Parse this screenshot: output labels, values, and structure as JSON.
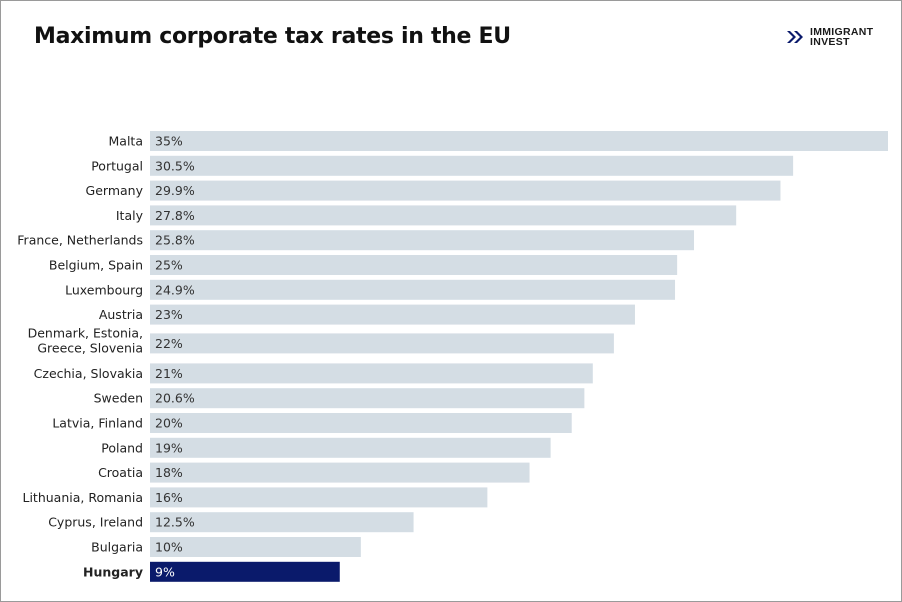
{
  "chart_data": {
    "type": "bar",
    "orientation": "horizontal",
    "title": "Maximum corporate tax rates in the EU",
    "categories": [
      "Malta",
      "Portugal",
      "Germany",
      "Italy",
      "France, Netherlands",
      "Belgium, Spain",
      "Luxembourg",
      "Austria",
      "Denmark, Estonia, Greece, Slovenia",
      "Czechia, Slovakia",
      "Sweden",
      "Latvia, Finland",
      "Poland",
      "Croatia",
      "Lithuania, Romania",
      "Cyprus, Ireland",
      "Bulgaria",
      "Hungary"
    ],
    "values": [
      35,
      30.5,
      29.9,
      27.8,
      25.8,
      25,
      24.9,
      23,
      22,
      21,
      20.6,
      20,
      19,
      18,
      16,
      12.5,
      10,
      9
    ],
    "labels": [
      "35%",
      "30.5%",
      "29.9%",
      "27.8%",
      "25.8%",
      "25%",
      "24.9%",
      "23%",
      "22%",
      "21%",
      "20.6%",
      "20%",
      "19%",
      "18%",
      "16%",
      "12.5%",
      "10%",
      "9%"
    ],
    "highlight": "Hungary",
    "xlim": [
      0,
      35
    ],
    "grid": false,
    "colors": {
      "bar": "#d4dde4",
      "highlight": "#0a1a6b",
      "label": "#333333",
      "highlight_label": "#ffffff"
    }
  },
  "logo": {
    "line1": "IMMIGRANT",
    "line2": "INVEST",
    "color": "#0a1a6b"
  }
}
